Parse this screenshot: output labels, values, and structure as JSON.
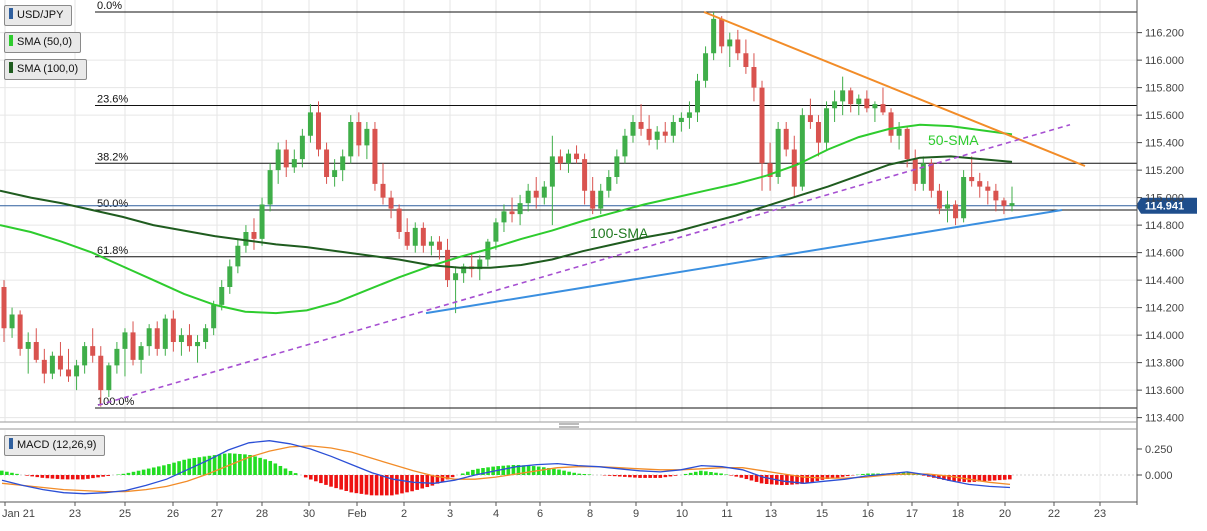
{
  "legend": {
    "symbol": "USD/JPY",
    "sma50": "SMA (50,0)",
    "sma100": "SMA (100,0)",
    "macd": "MACD (12,26,9)",
    "sma50_color": "#2ecc2e",
    "sma100_color": "#1f5c1f"
  },
  "price_tag": "114.941",
  "chart_data": {
    "type": "candlestick",
    "symbol": "USD/JPY",
    "x_ticks": [
      "Jan 21",
      "23",
      "25",
      "26",
      "27",
      "28",
      "30",
      "Feb",
      "2",
      "3",
      "4",
      "6",
      "8",
      "9",
      "10",
      "11",
      "13",
      "15",
      "16",
      "17",
      "18",
      "20",
      "22",
      "23"
    ],
    "y_ticks": [
      "116.200",
      "116.000",
      "115.800",
      "115.600",
      "115.400",
      "115.200",
      "115.000",
      "114.800",
      "114.600",
      "114.400",
      "114.200",
      "114.000",
      "113.800",
      "113.600",
      "113.400"
    ],
    "ylim": [
      113.37,
      116.52
    ],
    "last_price": 114.941,
    "fibonacci": [
      {
        "label": "0.0%",
        "value": 116.35
      },
      {
        "label": "23.6%",
        "value": 115.67
      },
      {
        "label": "38.2%",
        "value": 115.25
      },
      {
        "label": "50.0%",
        "value": 114.91
      },
      {
        "label": "61.8%",
        "value": 114.57
      },
      {
        "label": "100.0%",
        "value": 113.47
      }
    ],
    "annotations": [
      "50-SMA",
      "100-SMA"
    ],
    "trendlines": [
      {
        "name": "resistance",
        "color": "#f28c28",
        "from": [
          "Feb 10 12:00",
          116.35
        ],
        "to": [
          "Feb 22 12:00",
          115.23
        ]
      },
      {
        "name": "support",
        "color": "#3a8fe0",
        "from": [
          "Feb 2 12:00",
          114.16
        ],
        "to": [
          "Feb 22",
          114.91
        ]
      },
      {
        "name": "rising-dashed",
        "color": "#a64fd1",
        "from": [
          "Jan 23 12:00",
          113.49
        ],
        "to": [
          "Feb 22 12:00",
          115.53
        ]
      }
    ],
    "candles": [
      [
        114.35,
        114.4,
        113.95,
        114.05
      ],
      [
        114.05,
        114.2,
        113.98,
        114.15
      ],
      [
        114.15,
        114.18,
        113.85,
        113.9
      ],
      [
        113.9,
        114.02,
        113.72,
        113.95
      ],
      [
        113.95,
        114.05,
        113.8,
        113.82
      ],
      [
        113.82,
        113.9,
        113.65,
        113.72
      ],
      [
        113.72,
        113.88,
        113.68,
        113.85
      ],
      [
        113.85,
        113.95,
        113.7,
        113.75
      ],
      [
        113.75,
        113.9,
        113.66,
        113.7
      ],
      [
        113.7,
        113.82,
        113.6,
        113.78
      ],
      [
        113.78,
        113.95,
        113.72,
        113.92
      ],
      [
        113.92,
        114.05,
        113.8,
        113.85
      ],
      [
        113.85,
        113.92,
        113.48,
        113.6
      ],
      [
        113.6,
        113.8,
        113.55,
        113.78
      ],
      [
        113.78,
        113.95,
        113.72,
        113.9
      ],
      [
        113.9,
        114.05,
        113.7,
        114.02
      ],
      [
        114.02,
        114.1,
        113.78,
        113.82
      ],
      [
        113.82,
        113.95,
        113.72,
        113.92
      ],
      [
        113.92,
        114.08,
        113.85,
        114.05
      ],
      [
        114.05,
        114.1,
        113.85,
        113.9
      ],
      [
        113.9,
        114.15,
        113.85,
        114.12
      ],
      [
        114.12,
        114.18,
        113.88,
        113.95
      ],
      [
        113.95,
        114.05,
        113.85,
        114.0
      ],
      [
        114.0,
        114.08,
        113.88,
        113.92
      ],
      [
        113.92,
        114.0,
        113.8,
        113.95
      ],
      [
        113.95,
        114.08,
        113.9,
        114.05
      ],
      [
        114.05,
        114.25,
        114.0,
        114.22
      ],
      [
        114.22,
        114.4,
        114.18,
        114.35
      ],
      [
        114.35,
        114.55,
        114.3,
        114.5
      ],
      [
        114.5,
        114.7,
        114.45,
        114.65
      ],
      [
        114.65,
        114.8,
        114.6,
        114.75
      ],
      [
        114.75,
        114.85,
        114.62,
        114.7
      ],
      [
        114.7,
        115.0,
        114.65,
        114.95
      ],
      [
        114.95,
        115.25,
        114.9,
        115.2
      ],
      [
        115.2,
        115.4,
        115.1,
        115.35
      ],
      [
        115.35,
        115.42,
        115.15,
        115.22
      ],
      [
        115.22,
        115.35,
        115.18,
        115.28
      ],
      [
        115.28,
        115.5,
        115.22,
        115.45
      ],
      [
        115.45,
        115.68,
        115.4,
        115.62
      ],
      [
        115.62,
        115.7,
        115.3,
        115.35
      ],
      [
        115.35,
        115.4,
        115.1,
        115.15
      ],
      [
        115.15,
        115.28,
        115.08,
        115.2
      ],
      [
        115.2,
        115.35,
        115.12,
        115.3
      ],
      [
        115.3,
        115.6,
        115.25,
        115.55
      ],
      [
        115.55,
        115.62,
        115.3,
        115.38
      ],
      [
        115.38,
        115.55,
        115.28,
        115.5
      ],
      [
        115.5,
        115.55,
        115.05,
        115.1
      ],
      [
        115.1,
        115.25,
        114.95,
        115.0
      ],
      [
        115.0,
        115.05,
        114.85,
        114.92
      ],
      [
        114.92,
        114.95,
        114.7,
        114.75
      ],
      [
        114.75,
        114.85,
        114.62,
        114.65
      ],
      [
        114.65,
        114.82,
        114.6,
        114.78
      ],
      [
        114.78,
        114.82,
        114.6,
        114.65
      ],
      [
        114.65,
        114.72,
        114.58,
        114.68
      ],
      [
        114.68,
        114.72,
        114.55,
        114.62
      ],
      [
        114.62,
        114.7,
        114.35,
        114.4
      ],
      [
        114.4,
        114.5,
        114.16,
        114.45
      ],
      [
        114.45,
        114.52,
        114.38,
        114.5
      ],
      [
        114.5,
        114.6,
        114.42,
        114.48
      ],
      [
        114.48,
        114.58,
        114.4,
        114.55
      ],
      [
        114.55,
        114.7,
        114.5,
        114.68
      ],
      [
        114.68,
        114.85,
        114.62,
        114.82
      ],
      [
        114.82,
        114.95,
        114.75,
        114.9
      ],
      [
        114.9,
        115.0,
        114.82,
        114.88
      ],
      [
        114.88,
        115.02,
        114.8,
        114.96
      ],
      [
        114.96,
        115.1,
        114.9,
        115.05
      ],
      [
        115.05,
        115.15,
        114.92,
        115.0
      ],
      [
        115.0,
        115.12,
        114.95,
        115.08
      ],
      [
        115.08,
        115.45,
        114.8,
        115.3
      ],
      [
        115.3,
        115.35,
        115.2,
        115.25
      ],
      [
        115.25,
        115.35,
        115.18,
        115.32
      ],
      [
        115.32,
        115.38,
        115.25,
        115.28
      ],
      [
        115.28,
        115.32,
        114.95,
        115.05
      ],
      [
        115.05,
        115.15,
        114.88,
        114.92
      ],
      [
        114.92,
        115.1,
        114.88,
        115.05
      ],
      [
        115.05,
        115.2,
        115.0,
        115.15
      ],
      [
        115.15,
        115.35,
        115.1,
        115.3
      ],
      [
        115.3,
        115.5,
        115.25,
        115.45
      ],
      [
        115.45,
        115.6,
        115.4,
        115.55
      ],
      [
        115.55,
        115.68,
        115.45,
        115.5
      ],
      [
        115.5,
        115.6,
        115.38,
        115.42
      ],
      [
        115.42,
        115.52,
        115.35,
        115.48
      ],
      [
        115.48,
        115.55,
        115.4,
        115.45
      ],
      [
        115.45,
        115.6,
        115.4,
        115.55
      ],
      [
        115.55,
        115.62,
        115.48,
        115.58
      ],
      [
        115.58,
        115.7,
        115.5,
        115.62
      ],
      [
        115.62,
        115.9,
        115.55,
        115.85
      ],
      [
        115.85,
        116.1,
        115.8,
        116.05
      ],
      [
        116.05,
        116.35,
        116.0,
        116.3
      ],
      [
        116.3,
        116.32,
        116.05,
        116.1
      ],
      [
        116.1,
        116.2,
        115.95,
        116.15
      ],
      [
        116.15,
        116.22,
        116.0,
        116.05
      ],
      [
        116.05,
        116.15,
        115.9,
        115.95
      ],
      [
        115.95,
        116.05,
        115.7,
        115.8
      ],
      [
        115.8,
        115.85,
        115.05,
        115.25
      ],
      [
        115.25,
        115.4,
        115.05,
        115.15
      ],
      [
        115.15,
        115.55,
        115.1,
        115.5
      ],
      [
        115.5,
        115.55,
        115.3,
        115.35
      ],
      [
        115.35,
        115.45,
        115.0,
        115.08
      ],
      [
        115.08,
        115.65,
        115.05,
        115.6
      ],
      [
        115.6,
        115.72,
        115.5,
        115.55
      ],
      [
        115.55,
        115.6,
        115.3,
        115.4
      ],
      [
        115.4,
        115.7,
        115.35,
        115.65
      ],
      [
        115.65,
        115.78,
        115.55,
        115.7
      ],
      [
        115.7,
        115.88,
        115.6,
        115.78
      ],
      [
        115.78,
        115.8,
        115.62,
        115.68
      ],
      [
        115.68,
        115.75,
        115.6,
        115.72
      ],
      [
        115.72,
        115.78,
        115.62,
        115.65
      ],
      [
        115.65,
        115.7,
        115.55,
        115.68
      ],
      [
        115.68,
        115.8,
        115.6,
        115.62
      ],
      [
        115.62,
        115.65,
        115.4,
        115.45
      ],
      [
        115.45,
        115.55,
        115.35,
        115.5
      ],
      [
        115.5,
        115.52,
        115.22,
        115.28
      ],
      [
        115.28,
        115.35,
        115.05,
        115.1
      ],
      [
        115.1,
        115.3,
        115.05,
        115.25
      ],
      [
        115.25,
        115.28,
        115.0,
        115.05
      ],
      [
        115.05,
        115.1,
        114.88,
        114.92
      ],
      [
        114.92,
        115.05,
        114.82,
        114.95
      ],
      [
        114.95,
        114.98,
        114.8,
        114.85
      ],
      [
        114.85,
        115.2,
        114.82,
        115.15
      ],
      [
        115.15,
        115.3,
        115.08,
        115.12
      ],
      [
        115.12,
        115.18,
        115.0,
        115.08
      ],
      [
        115.08,
        115.12,
        114.95,
        115.05
      ],
      [
        115.05,
        115.1,
        114.9,
        114.98
      ],
      [
        114.98,
        115.0,
        114.88,
        114.94
      ],
      [
        114.94,
        115.08,
        114.9,
        114.96
      ]
    ],
    "sma50": [
      114.8,
      114.75,
      114.68,
      114.6,
      114.5,
      114.4,
      114.3,
      114.22,
      114.17,
      114.16,
      114.18,
      114.24,
      114.33,
      114.42,
      114.5,
      114.57,
      114.63,
      114.7,
      114.76,
      114.83,
      114.89,
      114.95,
      115.0,
      115.05,
      115.1,
      115.16,
      115.24,
      115.35,
      115.44,
      115.5,
      115.53,
      115.52,
      115.49,
      115.46
    ],
    "sma100": [
      115.05,
      115.0,
      114.96,
      114.91,
      114.86,
      114.8,
      114.76,
      114.72,
      114.69,
      114.66,
      114.64,
      114.61,
      114.58,
      114.55,
      114.51,
      114.49,
      114.49,
      114.51,
      114.55,
      114.61,
      114.66,
      114.71,
      114.75,
      114.81,
      114.87,
      114.94,
      115.01,
      115.08,
      115.16,
      115.24,
      115.29,
      115.3,
      115.28,
      115.26
    ],
    "macd": {
      "label": "MACD (12,26,9)",
      "y_ticks": [
        "0.250",
        "0.000"
      ],
      "macd_line": [
        -0.05,
        -0.1,
        -0.14,
        -0.17,
        -0.18,
        -0.17,
        -0.15,
        -0.1,
        -0.04,
        0.05,
        0.14,
        0.24,
        0.31,
        0.33,
        0.3,
        0.25,
        0.18,
        0.1,
        0.02,
        -0.04,
        -0.07,
        -0.08,
        -0.05,
        0.0,
        0.04,
        0.08,
        0.1,
        0.11,
        0.09,
        0.08,
        0.06,
        0.04,
        0.03,
        0.05,
        0.09,
        0.08,
        0.05,
        -0.02,
        -0.06,
        -0.08,
        -0.06,
        -0.04,
        -0.01,
        0.01,
        0.03,
        0.0,
        -0.05,
        -0.09,
        -0.11,
        -0.12
      ],
      "signal_line": [
        -0.08,
        -0.1,
        -0.12,
        -0.14,
        -0.15,
        -0.16,
        -0.16,
        -0.14,
        -0.11,
        -0.06,
        0.01,
        0.09,
        0.17,
        0.23,
        0.27,
        0.28,
        0.26,
        0.22,
        0.16,
        0.1,
        0.04,
        -0.01,
        -0.04,
        -0.04,
        -0.02,
        0.01,
        0.04,
        0.07,
        0.08,
        0.08,
        0.07,
        0.06,
        0.05,
        0.05,
        0.06,
        0.07,
        0.07,
        0.04,
        0.01,
        -0.02,
        -0.03,
        -0.03,
        -0.02,
        0.0,
        0.01,
        0.01,
        -0.01,
        -0.04,
        -0.07,
        -0.09
      ]
    }
  }
}
